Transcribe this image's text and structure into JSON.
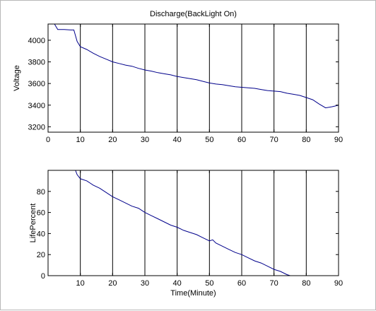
{
  "chart_data": [
    {
      "type": "line",
      "title": "Discharge(BackLight On)",
      "xlabel": "",
      "ylabel": "Voltage",
      "xlim": [
        0,
        90
      ],
      "ylim": [
        3150,
        4150
      ],
      "xticks": [
        0,
        10,
        20,
        30,
        40,
        50,
        60,
        70,
        80,
        90
      ],
      "yticks": [
        3200,
        3400,
        3600,
        3800,
        4000
      ],
      "vlines": [
        10,
        20,
        30,
        40,
        50,
        60,
        70,
        80,
        90
      ],
      "series": [
        {
          "color": "#00008b",
          "x": [
            0,
            2,
            3,
            5,
            7,
            8,
            9,
            10,
            12,
            14,
            16,
            18,
            20,
            22,
            24,
            26,
            28,
            30,
            32,
            34,
            36,
            38,
            40,
            42,
            44,
            46,
            48,
            50,
            52,
            54,
            56,
            58,
            60,
            62,
            64,
            66,
            68,
            70,
            72,
            74,
            76,
            78,
            80,
            82,
            84,
            86,
            88,
            90
          ],
          "y": [
            4150,
            4150,
            4100,
            4100,
            4095,
            4095,
            3990,
            3940,
            3915,
            3880,
            3850,
            3825,
            3800,
            3785,
            3770,
            3760,
            3740,
            3725,
            3715,
            3700,
            3690,
            3680,
            3665,
            3655,
            3645,
            3635,
            3620,
            3605,
            3595,
            3590,
            3580,
            3570,
            3565,
            3560,
            3555,
            3545,
            3535,
            3530,
            3525,
            3510,
            3500,
            3490,
            3470,
            3450,
            3410,
            3375,
            3385,
            3400
          ]
        }
      ]
    },
    {
      "type": "line",
      "title": "",
      "xlabel": "Time(Minute)",
      "ylabel": "LifePercent",
      "xlim": [
        0,
        90
      ],
      "ylim": [
        0,
        100
      ],
      "xticks": [
        10,
        20,
        30,
        40,
        50,
        60,
        70,
        80,
        90
      ],
      "yticks": [
        0,
        20,
        40,
        60,
        80
      ],
      "vlines": [
        10,
        20,
        30,
        40,
        50,
        60,
        70,
        80,
        90
      ],
      "series": [
        {
          "color": "#00008b",
          "x": [
            8.5,
            9,
            10,
            12,
            14,
            16,
            18,
            20,
            22,
            24,
            26,
            28,
            30,
            32,
            34,
            36,
            38,
            40,
            42,
            44,
            46,
            48,
            50,
            51,
            52,
            54,
            56,
            58,
            60,
            62,
            64,
            66,
            68,
            70,
            72,
            74,
            75,
            76,
            78,
            80,
            85,
            90
          ],
          "y": [
            100,
            96,
            92,
            90,
            86,
            83,
            79,
            75,
            72,
            69,
            66,
            64,
            60,
            57,
            54,
            51,
            48,
            46,
            43,
            41,
            39,
            36,
            33,
            34,
            31,
            28,
            25,
            22,
            20,
            17,
            14,
            12,
            9,
            6,
            4,
            1,
            0,
            0,
            0,
            0,
            0,
            0
          ]
        }
      ]
    }
  ]
}
